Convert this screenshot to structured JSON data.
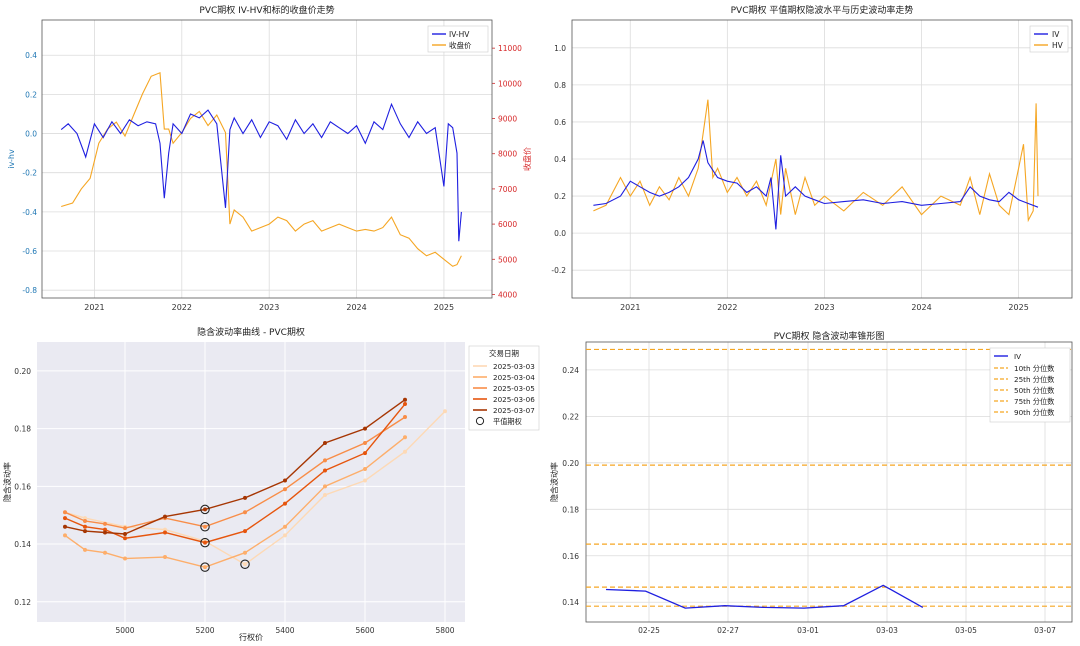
{
  "colors": {
    "blue": "#1f1fe0",
    "orange": "#f5a623",
    "red_axis": "#d62728",
    "grid": "#dcdcdc",
    "spine": "#555555"
  },
  "chart_data": [
    {
      "type": "line",
      "title": "PVC期权 IV-HV和标的收盘价走势",
      "ylabel": "iv-hv",
      "ylabel2": "收盘价",
      "ylim": [
        -0.84,
        0.58
      ],
      "ylim2": [
        3900,
        11800
      ],
      "xlim": [
        2020.4,
        2025.55
      ],
      "xticks": [
        2021,
        2022,
        2023,
        2024,
        2025
      ],
      "yticks": [
        -0.8,
        -0.6,
        -0.4,
        -0.2,
        0.0,
        0.2,
        0.4
      ],
      "yticks2": [
        4000,
        5000,
        6000,
        7000,
        8000,
        9000,
        10000,
        11000
      ],
      "legend_position": "top-right",
      "series": [
        {
          "name": "IV-HV",
          "axis": "left",
          "x": [
            2020.62,
            2020.7,
            2020.8,
            2020.9,
            2021.0,
            2021.1,
            2021.2,
            2021.3,
            2021.4,
            2021.5,
            2021.6,
            2021.7,
            2021.75,
            2021.8,
            2021.85,
            2021.9,
            2022.0,
            2022.1,
            2022.2,
            2022.3,
            2022.4,
            2022.5,
            2022.55,
            2022.6,
            2022.7,
            2022.8,
            2022.9,
            2023.0,
            2023.1,
            2023.2,
            2023.3,
            2023.4,
            2023.5,
            2023.6,
            2023.7,
            2023.8,
            2023.9,
            2024.0,
            2024.1,
            2024.2,
            2024.3,
            2024.4,
            2024.5,
            2024.6,
            2024.7,
            2024.8,
            2024.9,
            2025.0,
            2025.05,
            2025.1,
            2025.15,
            2025.17,
            2025.2
          ],
          "values": [
            0.02,
            0.05,
            0.0,
            -0.12,
            0.05,
            -0.02,
            0.06,
            0.0,
            0.07,
            0.04,
            0.06,
            0.05,
            -0.05,
            -0.33,
            -0.1,
            0.05,
            0.0,
            0.1,
            0.08,
            0.12,
            0.05,
            -0.38,
            0.02,
            0.08,
            0.0,
            0.07,
            -0.02,
            0.06,
            0.04,
            -0.03,
            0.07,
            0.0,
            0.05,
            -0.02,
            0.06,
            0.03,
            0.0,
            0.04,
            -0.05,
            0.06,
            0.02,
            0.15,
            0.05,
            -0.02,
            0.06,
            0.0,
            0.03,
            -0.27,
            0.05,
            0.03,
            -0.1,
            -0.55,
            -0.4
          ]
        },
        {
          "name": "收盘价",
          "axis": "right",
          "x": [
            2020.62,
            2020.75,
            2020.85,
            2020.95,
            2021.05,
            2021.15,
            2021.25,
            2021.35,
            2021.45,
            2021.55,
            2021.65,
            2021.75,
            2021.8,
            2021.85,
            2021.9,
            2022.0,
            2022.1,
            2022.2,
            2022.3,
            2022.4,
            2022.5,
            2022.55,
            2022.6,
            2022.7,
            2022.8,
            2022.9,
            2023.0,
            2023.1,
            2023.2,
            2023.3,
            2023.4,
            2023.5,
            2023.6,
            2023.7,
            2023.8,
            2023.9,
            2024.0,
            2024.1,
            2024.2,
            2024.3,
            2024.4,
            2024.5,
            2024.6,
            2024.7,
            2024.8,
            2024.9,
            2025.0,
            2025.1,
            2025.15,
            2025.2
          ],
          "values": [
            6500,
            6600,
            7000,
            7300,
            8300,
            8700,
            8900,
            8500,
            9100,
            9700,
            10200,
            10300,
            8700,
            8700,
            8300,
            8600,
            9000,
            9200,
            8800,
            9100,
            8600,
            6000,
            6400,
            6200,
            5800,
            5900,
            6000,
            6200,
            6100,
            5800,
            6000,
            6100,
            5800,
            5900,
            6000,
            5900,
            5800,
            5850,
            5800,
            5900,
            6200,
            5700,
            5600,
            5300,
            5100,
            5200,
            5000,
            4800,
            4850,
            5100
          ]
        }
      ]
    },
    {
      "type": "line",
      "title": "PVC期权 平值期权隐波水平与历史波动率走势",
      "ylim": [
        -0.35,
        1.15
      ],
      "xlim": [
        2020.4,
        2025.55
      ],
      "xticks": [
        2021,
        2022,
        2023,
        2024,
        2025
      ],
      "yticks": [
        -0.2,
        0.0,
        0.2,
        0.4,
        0.6,
        0.8,
        1.0
      ],
      "legend_position": "top-right",
      "series": [
        {
          "name": "IV",
          "x": [
            2020.62,
            2020.75,
            2020.9,
            2021.0,
            2021.1,
            2021.2,
            2021.3,
            2021.4,
            2021.5,
            2021.6,
            2021.7,
            2021.75,
            2021.8,
            2021.9,
            2022.0,
            2022.1,
            2022.2,
            2022.3,
            2022.4,
            2022.45,
            2022.5,
            2022.55,
            2022.6,
            2022.7,
            2022.8,
            2022.9,
            2023.0,
            2023.2,
            2023.4,
            2023.6,
            2023.8,
            2024.0,
            2024.2,
            2024.4,
            2024.5,
            2024.6,
            2024.7,
            2024.8,
            2024.9,
            2025.0,
            2025.1,
            2025.2
          ],
          "values": [
            0.15,
            0.16,
            0.2,
            0.28,
            0.25,
            0.22,
            0.2,
            0.22,
            0.25,
            0.3,
            0.4,
            0.5,
            0.38,
            0.3,
            0.28,
            0.27,
            0.22,
            0.25,
            0.2,
            0.3,
            0.02,
            0.42,
            0.2,
            0.25,
            0.2,
            0.18,
            0.16,
            0.17,
            0.18,
            0.16,
            0.17,
            0.15,
            0.16,
            0.17,
            0.25,
            0.2,
            0.18,
            0.17,
            0.22,
            0.18,
            0.16,
            0.14
          ]
        },
        {
          "name": "HV",
          "x": [
            2020.62,
            2020.75,
            2020.9,
            2021.0,
            2021.1,
            2021.2,
            2021.3,
            2021.4,
            2021.5,
            2021.6,
            2021.7,
            2021.8,
            2021.85,
            2021.9,
            2022.0,
            2022.1,
            2022.2,
            2022.3,
            2022.4,
            2022.5,
            2022.55,
            2022.6,
            2022.7,
            2022.8,
            2022.9,
            2023.0,
            2023.2,
            2023.4,
            2023.6,
            2023.8,
            2024.0,
            2024.2,
            2024.4,
            2024.5,
            2024.6,
            2024.7,
            2024.8,
            2024.9,
            2025.0,
            2025.05,
            2025.1,
            2025.15,
            2025.18,
            2025.2
          ],
          "values": [
            0.12,
            0.15,
            0.3,
            0.2,
            0.28,
            0.15,
            0.25,
            0.18,
            0.3,
            0.2,
            0.35,
            0.72,
            0.3,
            0.35,
            0.22,
            0.3,
            0.2,
            0.28,
            0.15,
            0.4,
            0.1,
            0.35,
            0.1,
            0.3,
            0.15,
            0.2,
            0.12,
            0.22,
            0.15,
            0.25,
            0.1,
            0.2,
            0.15,
            0.3,
            0.1,
            0.32,
            0.15,
            0.1,
            0.35,
            0.48,
            0.07,
            0.12,
            0.7,
            0.2
          ]
        }
      ]
    },
    {
      "type": "line",
      "title": "隐含波动率曲线 - PVC期权",
      "xlabel": "行权价",
      "ylabel": "隐含波动率",
      "xlim": [
        4780,
        5850
      ],
      "ylim": [
        0.113,
        0.21
      ],
      "xticks": [
        5000,
        5200,
        5400,
        5600,
        5800
      ],
      "yticks": [
        0.12,
        0.14,
        0.16,
        0.18,
        0.2
      ],
      "legend_title": "交易日期",
      "legend_position": "upper-right outside",
      "atm_label": "平值期权",
      "series": [
        {
          "name": "2025-03-03",
          "color": "#fdd9b5",
          "x": [
            4850,
            4900,
            5000,
            5100,
            5200,
            5300,
            5400,
            5500,
            5600,
            5700,
            5800
          ],
          "values": [
            0.151,
            0.149,
            0.146,
            0.145,
            0.141,
            0.133,
            0.143,
            0.157,
            0.162,
            0.172,
            0.186
          ]
        },
        {
          "name": "2025-03-04",
          "color": "#fdae6b",
          "x": [
            4850,
            4900,
            4950,
            5000,
            5100,
            5200,
            5300,
            5400,
            5500,
            5600,
            5700
          ],
          "values": [
            0.143,
            0.138,
            0.137,
            0.135,
            0.1355,
            0.132,
            0.137,
            0.146,
            0.16,
            0.166,
            0.177
          ]
        },
        {
          "name": "2025-03-05",
          "color": "#f88d48",
          "x": [
            4850,
            4900,
            4950,
            5000,
            5100,
            5200,
            5300,
            5400,
            5500,
            5600,
            5700
          ],
          "values": [
            0.151,
            0.148,
            0.147,
            0.1455,
            0.149,
            0.146,
            0.151,
            0.159,
            0.169,
            0.175,
            0.184
          ]
        },
        {
          "name": "2025-03-06",
          "color": "#e6550d",
          "x": [
            4850,
            4900,
            4950,
            5000,
            5100,
            5200,
            5300,
            5400,
            5500,
            5600,
            5700
          ],
          "values": [
            0.149,
            0.146,
            0.145,
            0.142,
            0.144,
            0.1405,
            0.1445,
            0.154,
            0.1655,
            0.1715,
            0.1885
          ]
        },
        {
          "name": "2025-03-07",
          "color": "#a63603",
          "x": [
            4850,
            4900,
            4950,
            5000,
            5100,
            5200,
            5300,
            5400,
            5500,
            5600,
            5700
          ],
          "values": [
            0.146,
            0.1445,
            0.144,
            0.1435,
            0.1495,
            0.152,
            0.156,
            0.162,
            0.175,
            0.18,
            0.19
          ]
        }
      ],
      "atm_points": [
        {
          "x": 5200,
          "y": 0.152
        },
        {
          "x": 5200,
          "y": 0.146
        },
        {
          "x": 5200,
          "y": 0.1405
        },
        {
          "x": 5200,
          "y": 0.132
        },
        {
          "x": 5300,
          "y": 0.133
        }
      ]
    },
    {
      "type": "line",
      "title": "PVC期权 隐含波动率锥形图",
      "ylabel": "隐含波动率",
      "ylim": [
        0.1315,
        0.252
      ],
      "xlim": [
        -0.7,
        8.3
      ],
      "xticks": [
        "02-25",
        "02-27",
        "03-01",
        "03-03",
        "03-05",
        "03-07"
      ],
      "xtick_positions": [
        0.5,
        2.5,
        4.5,
        6.5,
        8.5,
        10.5
      ],
      "yticks": [
        0.14,
        0.16,
        0.18,
        0.2,
        0.22,
        0.24
      ],
      "legend_position": "top-right",
      "series": [
        {
          "name": "IV",
          "x": [
            0,
            1,
            2,
            3,
            4,
            5,
            6,
            7,
            8
          ],
          "values": [
            0.1455,
            0.1448,
            0.1375,
            0.1385,
            0.1378,
            0.1375,
            0.1385,
            0.1473,
            0.1378
          ]
        }
      ],
      "quantiles": [
        {
          "name": "10th 分位数",
          "value": 0.1383
        },
        {
          "name": "25th 分位数",
          "value": 0.1465
        },
        {
          "name": "50th 分位数",
          "value": 0.165
        },
        {
          "name": "75th 分位数",
          "value": 0.199
        },
        {
          "name": "90th 分位数",
          "value": 0.2488
        }
      ]
    }
  ]
}
